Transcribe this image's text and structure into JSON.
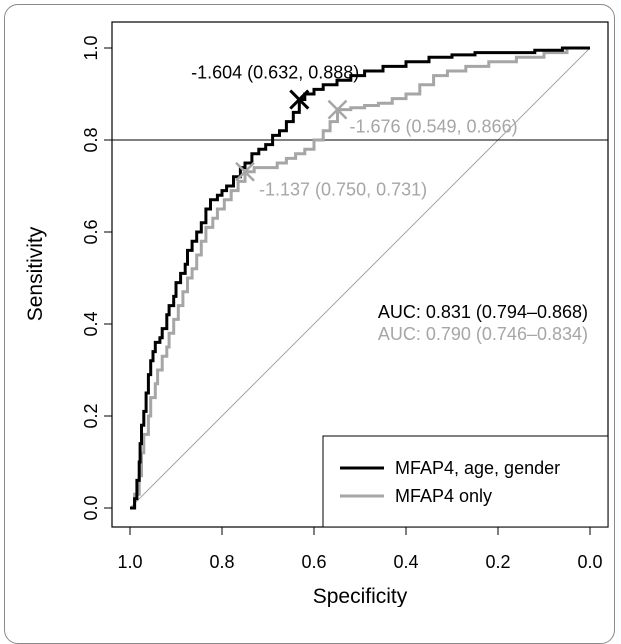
{
  "chart_data": {
    "type": "line",
    "xlabel": "Specificity",
    "ylabel": "Sensitivity",
    "xlim": [
      1.0,
      0.0
    ],
    "ylim": [
      0.0,
      1.0
    ],
    "x_reversed": true,
    "x_ticks": [
      "1.0",
      "0.8",
      "0.6",
      "0.4",
      "0.2",
      "0.0"
    ],
    "y_ticks": [
      "0.0",
      "0.2",
      "0.4",
      "0.6",
      "0.8",
      "1.0"
    ],
    "grid": false,
    "reference_line": {
      "type": "horizontal",
      "y": 0.8
    },
    "diagonal": {
      "from": [
        1.0,
        0.0
      ],
      "to": [
        0.0,
        1.0
      ]
    },
    "series": [
      {
        "name": "MFAP4, age, gender",
        "color": "#000000",
        "points": [
          [
            1.0,
            0.0
          ],
          [
            0.99,
            0.02
          ],
          [
            0.985,
            0.06
          ],
          [
            0.98,
            0.1
          ],
          [
            0.978,
            0.14
          ],
          [
            0.975,
            0.18
          ],
          [
            0.97,
            0.21
          ],
          [
            0.965,
            0.25
          ],
          [
            0.96,
            0.29
          ],
          [
            0.955,
            0.32
          ],
          [
            0.95,
            0.34
          ],
          [
            0.945,
            0.36
          ],
          [
            0.935,
            0.37
          ],
          [
            0.93,
            0.39
          ],
          [
            0.92,
            0.42
          ],
          [
            0.915,
            0.44
          ],
          [
            0.905,
            0.46
          ],
          [
            0.9,
            0.49
          ],
          [
            0.89,
            0.51
          ],
          [
            0.88,
            0.53
          ],
          [
            0.875,
            0.56
          ],
          [
            0.865,
            0.58
          ],
          [
            0.855,
            0.6
          ],
          [
            0.845,
            0.62
          ],
          [
            0.835,
            0.65
          ],
          [
            0.825,
            0.67
          ],
          [
            0.81,
            0.68
          ],
          [
            0.8,
            0.69
          ],
          [
            0.79,
            0.7
          ],
          [
            0.775,
            0.72
          ],
          [
            0.76,
            0.74
          ],
          [
            0.75,
            0.75
          ],
          [
            0.735,
            0.77
          ],
          [
            0.72,
            0.78
          ],
          [
            0.705,
            0.79
          ],
          [
            0.69,
            0.81
          ],
          [
            0.675,
            0.82
          ],
          [
            0.66,
            0.84
          ],
          [
            0.645,
            0.86
          ],
          [
            0.632,
            0.888
          ],
          [
            0.62,
            0.9
          ],
          [
            0.6,
            0.91
          ],
          [
            0.58,
            0.92
          ],
          [
            0.55,
            0.93
          ],
          [
            0.52,
            0.94
          ],
          [
            0.49,
            0.95
          ],
          [
            0.45,
            0.96
          ],
          [
            0.4,
            0.97
          ],
          [
            0.35,
            0.98
          ],
          [
            0.3,
            0.985
          ],
          [
            0.25,
            0.99
          ],
          [
            0.18,
            0.99
          ],
          [
            0.12,
            0.995
          ],
          [
            0.06,
            1.0
          ],
          [
            0.0,
            1.0
          ]
        ]
      },
      {
        "name": "MFAP4 only",
        "color": "#a6a6a6",
        "points": [
          [
            1.0,
            0.0
          ],
          [
            0.99,
            0.03
          ],
          [
            0.98,
            0.07
          ],
          [
            0.975,
            0.12
          ],
          [
            0.97,
            0.16
          ],
          [
            0.96,
            0.2
          ],
          [
            0.955,
            0.24
          ],
          [
            0.945,
            0.27
          ],
          [
            0.94,
            0.3
          ],
          [
            0.93,
            0.33
          ],
          [
            0.92,
            0.35
          ],
          [
            0.915,
            0.38
          ],
          [
            0.905,
            0.41
          ],
          [
            0.895,
            0.44
          ],
          [
            0.885,
            0.47
          ],
          [
            0.875,
            0.5
          ],
          [
            0.865,
            0.52
          ],
          [
            0.855,
            0.55
          ],
          [
            0.845,
            0.58
          ],
          [
            0.835,
            0.61
          ],
          [
            0.82,
            0.63
          ],
          [
            0.81,
            0.65
          ],
          [
            0.795,
            0.67
          ],
          [
            0.78,
            0.69
          ],
          [
            0.765,
            0.71
          ],
          [
            0.75,
            0.731
          ],
          [
            0.73,
            0.74
          ],
          [
            0.7,
            0.74
          ],
          [
            0.68,
            0.75
          ],
          [
            0.66,
            0.76
          ],
          [
            0.64,
            0.77
          ],
          [
            0.62,
            0.78
          ],
          [
            0.6,
            0.8
          ],
          [
            0.58,
            0.82
          ],
          [
            0.565,
            0.84
          ],
          [
            0.549,
            0.866
          ],
          [
            0.52,
            0.87
          ],
          [
            0.49,
            0.875
          ],
          [
            0.46,
            0.88
          ],
          [
            0.43,
            0.89
          ],
          [
            0.4,
            0.9
          ],
          [
            0.37,
            0.92
          ],
          [
            0.34,
            0.94
          ],
          [
            0.31,
            0.95
          ],
          [
            0.27,
            0.96
          ],
          [
            0.22,
            0.97
          ],
          [
            0.16,
            0.98
          ],
          [
            0.1,
            0.99
          ],
          [
            0.05,
            1.0
          ],
          [
            0.0,
            1.0
          ]
        ]
      }
    ],
    "annotations": [
      {
        "label": "-1.604 (0.632, 0.888)",
        "x": 0.632,
        "y": 0.888,
        "color": "#000000"
      },
      {
        "label": "-1.676 (0.549, 0.866)",
        "x": 0.549,
        "y": 0.866,
        "color": "#a6a6a6"
      },
      {
        "label": "-1.137 (0.750, 0.731)",
        "x": 0.75,
        "y": 0.731,
        "color": "#a6a6a6"
      }
    ],
    "auc": [
      {
        "text": "AUC: 0.831 (0.794–0.868)",
        "color": "#000000"
      },
      {
        "text": "AUC: 0.790 (0.746–0.834)",
        "color": "#a6a6a6"
      }
    ],
    "legend": {
      "placement": "bottom-right",
      "entries": [
        "MFAP4, age, gender",
        "MFAP4 only"
      ]
    }
  }
}
